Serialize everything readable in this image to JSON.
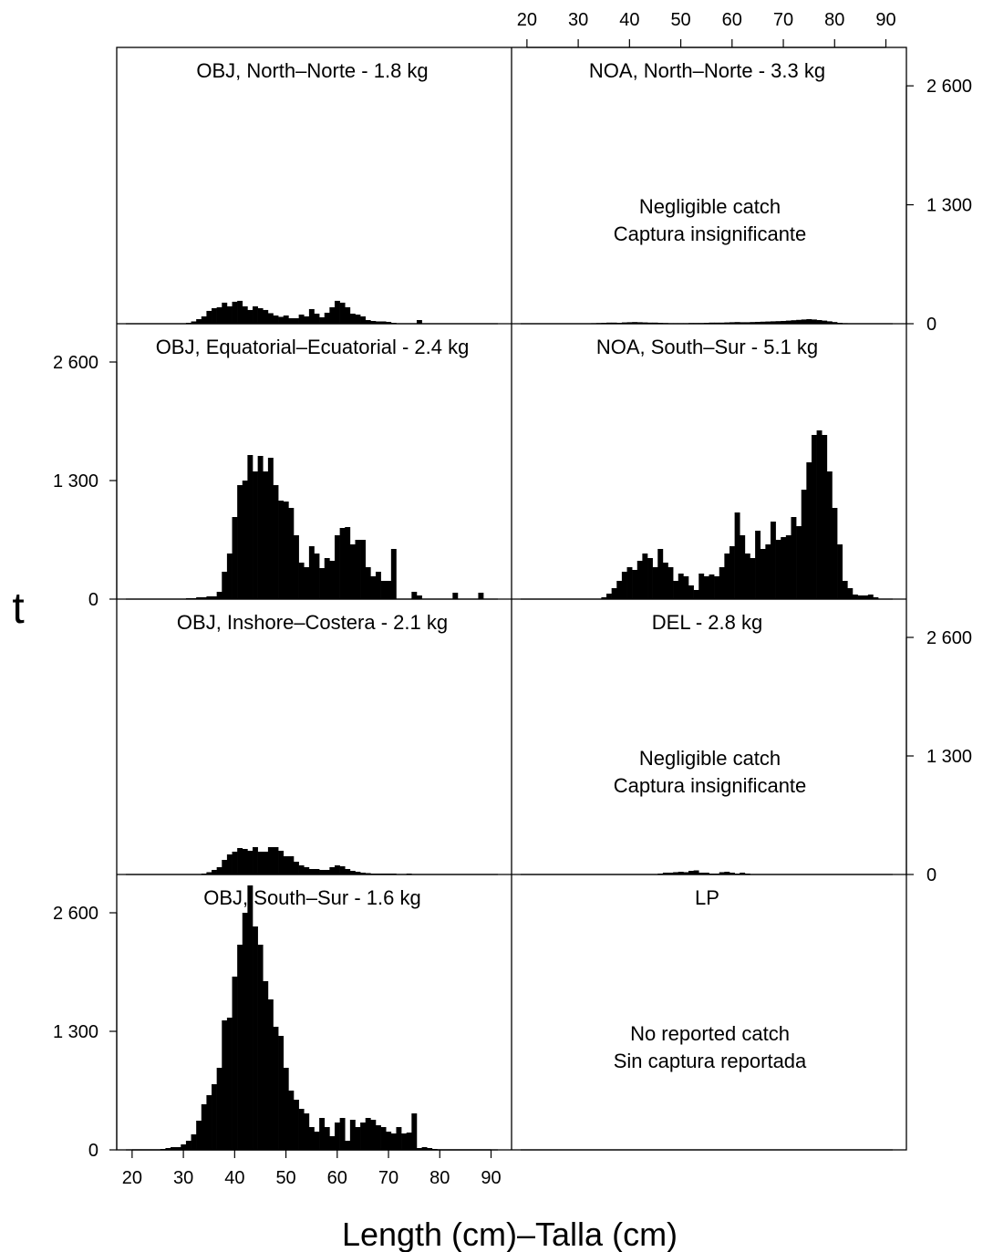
{
  "chart_data": {
    "type": "bar",
    "ylabel": "t",
    "xlabel": "Length (cm)–Talla (cm)",
    "xlim": [
      17,
      94
    ],
    "ylim": [
      0,
      3000
    ],
    "x_ticks": [
      20,
      30,
      40,
      50,
      60,
      70,
      80,
      90
    ],
    "y_ticks": [
      0,
      1300,
      2600
    ],
    "y_tick_labels": [
      "0",
      "1 300",
      "2 600"
    ],
    "bin_width_cm": 1,
    "panels": [
      {
        "title": "OBJ, North–Norte - 1.8 kg",
        "note": [],
        "x": [
          27,
          28,
          29,
          30,
          31,
          32,
          33,
          34,
          35,
          36,
          37,
          38,
          39,
          40,
          41,
          42,
          43,
          44,
          45,
          46,
          47,
          48,
          49,
          50,
          51,
          52,
          53,
          54,
          55,
          56,
          57,
          58,
          59,
          60,
          61,
          62,
          63,
          64,
          65,
          66,
          67,
          68,
          69,
          70,
          71,
          72,
          73,
          74,
          75,
          76,
          77
        ],
        "values": [
          0,
          0,
          0,
          0,
          10,
          25,
          50,
          80,
          140,
          170,
          180,
          230,
          190,
          240,
          250,
          190,
          150,
          190,
          170,
          150,
          115,
          90,
          75,
          90,
          60,
          60,
          100,
          80,
          160,
          110,
          70,
          120,
          180,
          250,
          230,
          180,
          110,
          100,
          80,
          40,
          30,
          25,
          25,
          20,
          10,
          0,
          0,
          0,
          0,
          40,
          0
        ]
      },
      {
        "title": "NOA, North–Norte - 3.3 kg",
        "note": [
          "Negligible catch",
          "Captura insignificante"
        ],
        "x": [
          31,
          32,
          33,
          34,
          35,
          36,
          37,
          38,
          39,
          40,
          41,
          42,
          43,
          44,
          45,
          46,
          47,
          48,
          49,
          50,
          51,
          52,
          53,
          54,
          55,
          56,
          57,
          58,
          59,
          60,
          61,
          62,
          63,
          64,
          65,
          66,
          67,
          68,
          69,
          70,
          71,
          72,
          73,
          74,
          75,
          76,
          77,
          78,
          79,
          80,
          81,
          82,
          83
        ],
        "values": [
          2,
          4,
          6,
          8,
          10,
          12,
          12,
          10,
          14,
          16,
          18,
          16,
          14,
          12,
          12,
          10,
          8,
          6,
          6,
          6,
          6,
          8,
          8,
          8,
          10,
          12,
          12,
          12,
          14,
          16,
          18,
          16,
          16,
          18,
          20,
          22,
          24,
          26,
          28,
          30,
          34,
          38,
          42,
          46,
          50,
          46,
          40,
          34,
          26,
          18,
          10,
          6,
          2
        ]
      },
      {
        "title": "OBJ, Equatorial–Ecuatorial - 2.4 kg",
        "note": [],
        "x": [
          27,
          28,
          29,
          30,
          31,
          32,
          33,
          34,
          35,
          36,
          37,
          38,
          39,
          40,
          41,
          42,
          43,
          44,
          45,
          46,
          47,
          48,
          49,
          50,
          51,
          52,
          53,
          54,
          55,
          56,
          57,
          58,
          59,
          60,
          61,
          62,
          63,
          64,
          65,
          66,
          67,
          68,
          69,
          70,
          71,
          72,
          73,
          74,
          75,
          76,
          77,
          78,
          79,
          80,
          81,
          82,
          83,
          84,
          85,
          86,
          87,
          88
        ],
        "values": [
          0,
          0,
          0,
          0,
          10,
          10,
          20,
          20,
          30,
          30,
          80,
          300,
          500,
          900,
          1250,
          1300,
          1580,
          1400,
          1570,
          1400,
          1550,
          1250,
          1080,
          1070,
          1000,
          700,
          400,
          350,
          580,
          500,
          340,
          450,
          420,
          700,
          780,
          790,
          600,
          650,
          650,
          350,
          250,
          300,
          200,
          200,
          550,
          0,
          0,
          0,
          80,
          40,
          0,
          0,
          0,
          0,
          0,
          0,
          70,
          0,
          0,
          0,
          0,
          70
        ]
      },
      {
        "title": "NOA, South–Sur - 5.1 kg",
        "note": [],
        "x": [
          35,
          36,
          37,
          38,
          39,
          40,
          41,
          42,
          43,
          44,
          45,
          46,
          47,
          48,
          49,
          50,
          51,
          52,
          53,
          54,
          55,
          56,
          57,
          58,
          59,
          60,
          61,
          62,
          63,
          64,
          65,
          66,
          67,
          68,
          69,
          70,
          71,
          72,
          73,
          74,
          75,
          76,
          77,
          78,
          79,
          80,
          81,
          82,
          83,
          84,
          85,
          86,
          87,
          88
        ],
        "values": [
          20,
          60,
          120,
          200,
          300,
          350,
          320,
          420,
          500,
          450,
          350,
          550,
          400,
          350,
          200,
          280,
          250,
          150,
          100,
          280,
          250,
          270,
          250,
          350,
          500,
          580,
          950,
          700,
          500,
          450,
          750,
          550,
          600,
          850,
          650,
          680,
          700,
          900,
          800,
          1200,
          1500,
          1800,
          1850,
          1800,
          1400,
          1000,
          600,
          200,
          120,
          50,
          40,
          40,
          50,
          20
        ]
      },
      {
        "title": "OBJ, Inshore–Costera - 2.1 kg",
        "note": [],
        "x": [
          27,
          28,
          29,
          30,
          31,
          32,
          33,
          34,
          35,
          36,
          37,
          38,
          39,
          40,
          41,
          42,
          43,
          44,
          45,
          46,
          47,
          48,
          49,
          50,
          51,
          52,
          53,
          54,
          55,
          56,
          57,
          58,
          59,
          60,
          61,
          62,
          63,
          64,
          65,
          66,
          67,
          68,
          69,
          70,
          71,
          72,
          73,
          74,
          75
        ],
        "values": [
          0,
          0,
          0,
          0,
          0,
          0,
          0,
          10,
          25,
          50,
          80,
          160,
          220,
          250,
          290,
          280,
          260,
          300,
          250,
          250,
          300,
          300,
          260,
          200,
          200,
          140,
          100,
          80,
          60,
          60,
          50,
          50,
          80,
          100,
          90,
          60,
          40,
          30,
          20,
          15,
          10,
          10,
          10,
          10,
          10,
          5,
          5,
          10,
          5
        ]
      },
      {
        "title": "DEL - 2.8 kg",
        "note": [
          "Negligible catch",
          "Captura insignificante"
        ],
        "x": [
          46,
          47,
          48,
          49,
          50,
          51,
          52,
          53,
          54,
          55,
          56,
          57,
          58,
          59,
          60,
          61,
          62,
          63,
          64
        ],
        "values": [
          10,
          20,
          20,
          25,
          30,
          25,
          40,
          45,
          20,
          20,
          10,
          10,
          25,
          30,
          20,
          10,
          20,
          10,
          5
        ]
      },
      {
        "title": "OBJ, South–Sur - 1.6 kg",
        "note": [],
        "x": [
          26,
          27,
          28,
          29,
          30,
          31,
          32,
          33,
          34,
          35,
          36,
          37,
          38,
          39,
          40,
          41,
          42,
          43,
          44,
          45,
          46,
          47,
          48,
          49,
          50,
          51,
          52,
          53,
          54,
          55,
          56,
          57,
          58,
          59,
          60,
          61,
          62,
          63,
          64,
          65,
          66,
          67,
          68,
          69,
          70,
          71,
          72,
          73,
          74,
          75,
          76,
          77,
          78,
          79
        ],
        "values": [
          10,
          20,
          30,
          30,
          60,
          100,
          170,
          320,
          500,
          600,
          720,
          900,
          1420,
          1450,
          1900,
          2250,
          2600,
          2900,
          2450,
          2250,
          1850,
          1650,
          1350,
          1250,
          900,
          650,
          550,
          450,
          400,
          250,
          200,
          350,
          250,
          150,
          300,
          350,
          100,
          330,
          250,
          300,
          350,
          330,
          270,
          250,
          200,
          180,
          250,
          180,
          190,
          400,
          20,
          30,
          20,
          10
        ]
      },
      {
        "title": "LP",
        "note": [
          "No reported catch",
          "Sin captura reportada"
        ],
        "x": [],
        "values": []
      }
    ]
  }
}
